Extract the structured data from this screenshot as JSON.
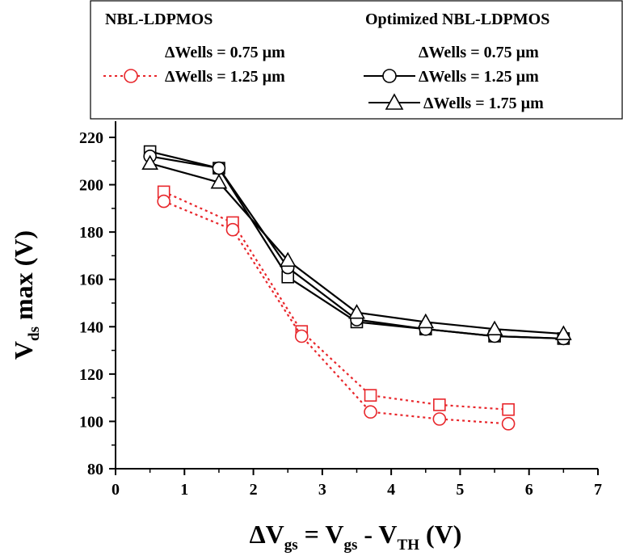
{
  "chart_data": {
    "type": "line",
    "xlabel": {
      "prefix": "ΔV",
      "sub1": "gs",
      "mid": " = V",
      "sub2": "gs",
      "mid2": " - V",
      "sub3": "TH",
      "suffix": " (V)"
    },
    "ylabel": {
      "main": "V",
      "sub": "ds",
      "suffix": " max (V)"
    },
    "xlim": [
      0,
      7
    ],
    "ylim": [
      80,
      220
    ],
    "xticks": [
      0,
      1,
      2,
      3,
      4,
      5,
      6,
      7
    ],
    "yticks": [
      80,
      100,
      120,
      140,
      160,
      180,
      200,
      220
    ],
    "grid": false,
    "legend_position": "top",
    "legend": {
      "group1_title": "NBL-LDPMOS",
      "group2_title": "Optimized NBL-LDPMOS"
    },
    "series": [
      {
        "name": "ΔWells = 0.75 µm",
        "group": "NBL-LDPMOS",
        "marker": "square",
        "color": "#e8262b",
        "dash": true,
        "x": [
          0.7,
          1.7,
          2.7,
          3.7,
          4.7,
          5.7
        ],
        "y": [
          197,
          184,
          138,
          111,
          107,
          105
        ]
      },
      {
        "name": "ΔWells = 1.25 µm",
        "group": "NBL-LDPMOS",
        "marker": "circle",
        "color": "#e8262b",
        "dash": true,
        "x": [
          0.7,
          1.7,
          2.7,
          3.7,
          4.7,
          5.7
        ],
        "y": [
          193,
          181,
          136,
          104,
          101,
          99
        ]
      },
      {
        "name": "ΔWells = 0.75 µm",
        "group": "Optimized NBL-LDPMOS",
        "marker": "square",
        "color": "#000000",
        "dash": false,
        "x": [
          0.5,
          1.5,
          2.5,
          3.5,
          4.5,
          5.5,
          6.5
        ],
        "y": [
          214,
          207,
          161,
          142,
          139,
          136,
          135
        ]
      },
      {
        "name": "ΔWells = 1.25 µm",
        "group": "Optimized NBL-LDPMOS",
        "marker": "circle",
        "color": "#000000",
        "dash": false,
        "x": [
          0.5,
          1.5,
          2.5,
          3.5,
          4.5,
          5.5,
          6.5
        ],
        "y": [
          212,
          207,
          165,
          143,
          139,
          136,
          135
        ]
      },
      {
        "name": "ΔWells = 1.75 µm",
        "group": "Optimized NBL-LDPMOS",
        "marker": "triangle",
        "color": "#000000",
        "dash": false,
        "x": [
          0.5,
          1.5,
          2.5,
          3.5,
          4.5,
          5.5,
          6.5
        ],
        "y": [
          209,
          201,
          168,
          146,
          142,
          139,
          137
        ]
      }
    ]
  }
}
